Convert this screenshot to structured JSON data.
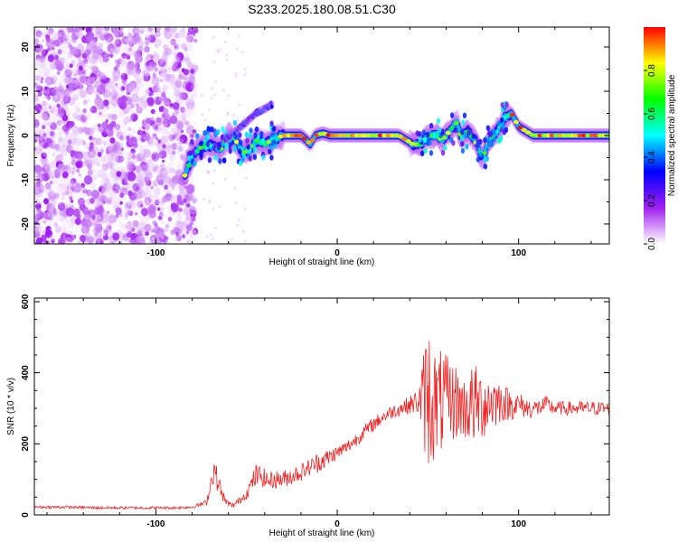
{
  "figure": {
    "title": "S233.2025.180.08.51.C30"
  },
  "chart_data": [
    {
      "type": "heatmap",
      "xlabel": "Height of straight line (km)",
      "ylabel": "Frequency (Hz)",
      "xlim": [
        -167,
        150
      ],
      "ylim": [
        -24.5,
        24.5
      ],
      "xticks": [
        -100,
        0,
        100
      ],
      "yticks": [
        -20,
        -10,
        0,
        10,
        20
      ],
      "colorbar": {
        "label": "Normalized spectral amplitude",
        "ticks": [
          0.0,
          0.2,
          0.4,
          0.6,
          0.8
        ],
        "range": [
          0,
          1
        ],
        "colormap": [
          "#ffffff",
          "#a020f0",
          "#0000ff",
          "#00ffff",
          "#00ff00",
          "#ffff00",
          "#ff0000"
        ]
      },
      "frequency_trace": {
        "x": [
          -84,
          -80,
          -76,
          -72,
          -68,
          -64,
          -60,
          -56,
          -52,
          -48,
          -44,
          -40,
          -36,
          -30,
          -25,
          -20,
          -17,
          -15,
          -12,
          -8,
          -4,
          0,
          6,
          12,
          20,
          28,
          34,
          38,
          42,
          46,
          48,
          50,
          54,
          58,
          62,
          66,
          68,
          72,
          76,
          78,
          80,
          82,
          84,
          86,
          90,
          92,
          96,
          100,
          104,
          108,
          112,
          118,
          125,
          135,
          150
        ],
        "y": [
          -9,
          -5,
          -3,
          -2,
          -2.5,
          -3,
          0,
          -1,
          -4,
          -3,
          -1,
          -2,
          -1,
          0,
          0,
          0,
          -1,
          -2,
          0,
          0.5,
          0,
          0,
          0,
          0,
          0,
          0,
          0,
          -1,
          -2,
          -2,
          -1,
          0,
          0,
          -1,
          1,
          3,
          0,
          1,
          -1,
          -3,
          -5,
          -3,
          -1,
          0,
          2,
          4,
          5,
          2,
          1,
          0,
          0,
          0,
          0,
          0,
          0
        ]
      },
      "diagonal_feature": {
        "x": [
          -62,
          -56,
          -50,
          -45,
          -40,
          -36
        ],
        "y": [
          -1,
          1,
          3,
          5,
          6,
          7
        ]
      },
      "noise_region_end_x": -78
    },
    {
      "type": "line",
      "xlabel": "Height of straight line (km)",
      "ylabel": "SNR (10 * v/v)",
      "xlim": [
        -167,
        150
      ],
      "ylim": [
        0,
        610
      ],
      "xticks": [
        -100,
        0,
        100
      ],
      "yticks": [
        0,
        200,
        400,
        600
      ],
      "series": [
        {
          "color": "#ee2222",
          "x": [
            -167,
            -150,
            -130,
            -110,
            -90,
            -80,
            -72,
            -68,
            -65,
            -62,
            -58,
            -54,
            -50,
            -47,
            -45,
            -42,
            -38,
            -34,
            -30,
            -25,
            -20,
            -15,
            -10,
            -5,
            0,
            5,
            10,
            15,
            20,
            25,
            30,
            35,
            40,
            45,
            48,
            50,
            52,
            55,
            58,
            60,
            65,
            70,
            75,
            80,
            85,
            90,
            95,
            100,
            105,
            110,
            115,
            120,
            125,
            130,
            140,
            150
          ],
          "y": [
            22,
            22,
            20,
            20,
            20,
            22,
            35,
            130,
            80,
            40,
            25,
            40,
            60,
            90,
            110,
            110,
            95,
            100,
            100,
            110,
            120,
            135,
            150,
            160,
            175,
            190,
            210,
            235,
            255,
            275,
            290,
            300,
            310,
            320,
            330,
            340,
            320,
            310,
            320,
            320,
            320,
            300,
            310,
            310,
            320,
            320,
            310,
            310,
            300,
            300,
            310,
            300,
            300,
            300,
            300,
            300
          ],
          "spread": [
            4,
            4,
            4,
            4,
            4,
            4,
            8,
            40,
            30,
            10,
            8,
            10,
            15,
            25,
            35,
            30,
            25,
            25,
            25,
            25,
            25,
            25,
            30,
            25,
            20,
            20,
            20,
            20,
            20,
            20,
            20,
            22,
            25,
            40,
            150,
            230,
            180,
            150,
            150,
            130,
            110,
            90,
            120,
            100,
            90,
            60,
            45,
            35,
            30,
            25,
            25,
            20,
            20,
            20,
            20,
            20
          ]
        }
      ]
    }
  ]
}
